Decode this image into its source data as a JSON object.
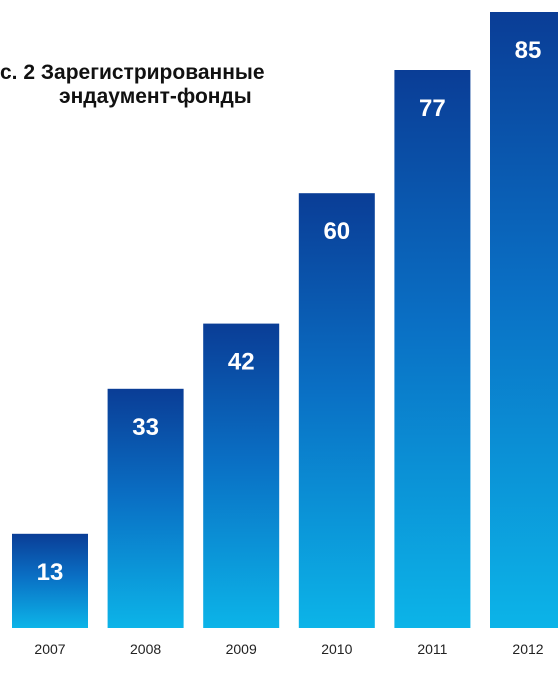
{
  "chart_data": {
    "type": "bar",
    "title": "с. 2 Зарегистрированные",
    "subtitle": "эндаумент-фонды",
    "categories": [
      "2007",
      "2008",
      "2009",
      "2010",
      "2011",
      "2012"
    ],
    "values": [
      13,
      33,
      42,
      60,
      77,
      85
    ],
    "xlabel": "",
    "ylabel": "",
    "ylim": [
      0,
      85
    ],
    "grid": false,
    "legend": "none",
    "data_labels": true,
    "colors": {
      "bar_top": "#0a3d96",
      "bar_bottom": "#0cb4e8",
      "label_text": "#ffffff",
      "title_text": "#111111",
      "tick_text": "#222222"
    }
  }
}
